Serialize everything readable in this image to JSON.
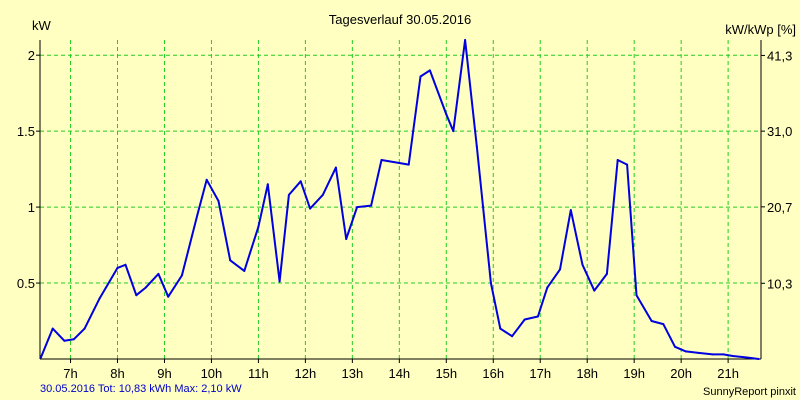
{
  "chart_data": {
    "type": "line",
    "title": "Tagesverlauf 30.05.2016",
    "ylabel_left": "kW",
    "ylabel_right": "kW/kWp [%]",
    "ylim": [
      0,
      2.1
    ],
    "xlim": [
      6.35,
      21.7
    ],
    "x_ticks": [
      7,
      8,
      9,
      10,
      11,
      12,
      13,
      14,
      15,
      16,
      17,
      18,
      19,
      20,
      21
    ],
    "x_tick_labels": [
      "7h",
      "8h",
      "9h",
      "10h",
      "11h",
      "12h",
      "13h",
      "14h",
      "15h",
      "16h",
      "17h",
      "18h",
      "19h",
      "20h",
      "21h"
    ],
    "y_ticks": [
      0.5,
      1,
      1.5,
      2
    ],
    "y_tick_labels": [
      "0.5",
      "1",
      "1.5",
      "2"
    ],
    "y2_ticks": [
      10.3,
      20.7,
      31.0,
      41.3
    ],
    "y2_tick_labels": [
      "10,3",
      "20,7",
      "31,0",
      "41,3"
    ],
    "y2_max": 43.4,
    "grid": true,
    "series": [
      {
        "color": "#0000e0",
        "x": [
          6.37,
          6.62,
          6.87,
          7.07,
          7.3,
          7.62,
          8.0,
          8.17,
          8.4,
          8.6,
          8.87,
          9.08,
          9.37,
          9.7,
          9.9,
          10.15,
          10.4,
          10.7,
          11.0,
          11.2,
          11.45,
          11.65,
          11.9,
          12.1,
          12.37,
          12.65,
          12.87,
          13.1,
          13.4,
          13.62,
          14.0,
          14.2,
          14.45,
          14.65,
          15.0,
          15.15,
          15.4,
          15.65,
          15.95,
          16.15,
          16.4,
          16.67,
          16.95,
          17.15,
          17.42,
          17.65,
          17.9,
          18.15,
          18.42,
          18.65,
          18.85,
          19.05,
          19.37,
          19.62,
          19.87,
          20.1,
          20.37,
          20.67,
          20.9,
          21.1,
          21.4,
          21.65
        ],
        "y": [
          0.01,
          0.2,
          0.12,
          0.13,
          0.2,
          0.4,
          0.6,
          0.62,
          0.42,
          0.47,
          0.56,
          0.41,
          0.55,
          0.95,
          1.18,
          1.04,
          0.65,
          0.58,
          0.87,
          1.15,
          0.51,
          1.08,
          1.17,
          0.99,
          1.08,
          1.26,
          0.79,
          1.0,
          1.01,
          1.31,
          1.29,
          1.28,
          1.86,
          1.9,
          1.61,
          1.5,
          2.1,
          1.4,
          0.5,
          0.2,
          0.15,
          0.26,
          0.28,
          0.47,
          0.59,
          0.98,
          0.62,
          0.45,
          0.56,
          1.31,
          1.28,
          0.42,
          0.25,
          0.23,
          0.08,
          0.05,
          0.04,
          0.03,
          0.03,
          0.02,
          0.01,
          0.0
        ]
      }
    ]
  },
  "footer": {
    "summary": "30.05.2016 Tot: 10,83 kWh Max: 2,10 kW",
    "credit": "SunnyReport pinxit"
  }
}
